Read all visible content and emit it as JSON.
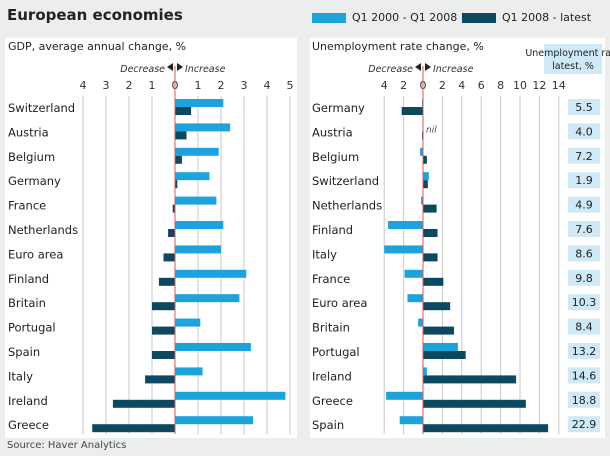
{
  "title": "European economies",
  "source": "Source: Haver Analytics",
  "colors": {
    "period1": "#1ca3dc",
    "period2": "#0d4861",
    "zero_line": "#e0555a",
    "value_box": "#cfe9f6"
  },
  "legend": [
    {
      "label": "Q1 2000 - Q1 2008"
    },
    {
      "label": "Q1 2008 - latest"
    }
  ],
  "chart_data": [
    {
      "type": "bar",
      "orientation": "horizontal",
      "title": "GDP, average annual change, %",
      "direction_labels": {
        "decrease": "Decrease",
        "increase": "Increase"
      },
      "xlim": [
        -4,
        5
      ],
      "ticks": [
        -4,
        -3,
        -2,
        -1,
        0,
        1,
        2,
        3,
        4,
        5
      ],
      "tick_labels": [
        "4",
        "3",
        "2",
        "1",
        "0",
        "1",
        "2",
        "3",
        "4",
        "5"
      ],
      "grid": true,
      "categories": [
        "Switzerland",
        "Austria",
        "Belgium",
        "Germany",
        "France",
        "Netherlands",
        "Euro area",
        "Finland",
        "Britain",
        "Portugal",
        "Spain",
        "Italy",
        "Ireland",
        "Greece"
      ],
      "series": [
        {
          "name": "Q1 2000 - Q1 2008",
          "values": [
            2.1,
            2.4,
            1.9,
            1.5,
            1.8,
            2.1,
            2.0,
            3.1,
            2.8,
            1.1,
            3.3,
            1.2,
            4.8,
            3.4
          ]
        },
        {
          "name": "Q1 2008 - latest",
          "values": [
            0.7,
            0.5,
            0.3,
            0.1,
            -0.1,
            -0.3,
            -0.5,
            -0.7,
            -1.0,
            -1.0,
            -1.0,
            -1.3,
            -2.7,
            -3.6
          ]
        }
      ]
    },
    {
      "type": "bar",
      "orientation": "horizontal",
      "title": "Unemployment rate change, %",
      "direction_labels": {
        "decrease": "Decrease",
        "increase": "Increase"
      },
      "annotation": "nil",
      "xlim": [
        -4,
        14
      ],
      "ticks": [
        -4,
        -2,
        0,
        2,
        4,
        6,
        8,
        10,
        12,
        14
      ],
      "tick_labels": [
        "4",
        "2",
        "0",
        "2",
        "4",
        "6",
        "8",
        "10",
        "12",
        "14"
      ],
      "grid": true,
      "categories": [
        "Germany",
        "Austria",
        "Belgium",
        "Switzerland",
        "Netherlands",
        "Finland",
        "Italy",
        "France",
        "Euro area",
        "Britain",
        "Portugal",
        "Ireland",
        "Greece",
        "Spain"
      ],
      "series": [
        {
          "name": "Q1 2000 - Q1 2008",
          "values": [
            -0.1,
            0,
            -0.3,
            0.6,
            -0.2,
            -3.6,
            -4.0,
            -1.9,
            -1.6,
            -0.5,
            3.6,
            0.4,
            -3.8,
            -2.4
          ]
        },
        {
          "name": "Q1 2008 - latest",
          "values": [
            -2.2,
            -0.1,
            0.4,
            0.5,
            1.4,
            1.5,
            1.5,
            2.1,
            2.8,
            3.2,
            4.4,
            9.6,
            10.6,
            12.9
          ]
        }
      ],
      "latest_label": "Unemployment rate, latest, %",
      "latest_values": [
        "5.5",
        "4.0",
        "7.2",
        "1.9",
        "4.9",
        "7.6",
        "8.6",
        "9.8",
        "10.3",
        "8.4",
        "13.2",
        "14.6",
        "18.8",
        "22.9"
      ]
    }
  ]
}
